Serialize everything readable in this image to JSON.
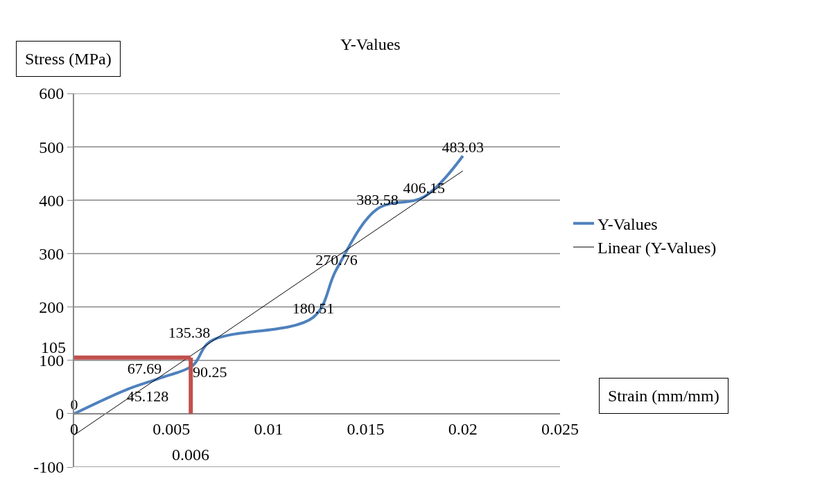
{
  "chart_data": {
    "type": "line",
    "title": "Y-Values",
    "xlabel": "Strain (mm/mm)",
    "ylabel": "Stress (MPa)",
    "series": [
      {
        "name": "Y-Values",
        "color": "#4f81bd",
        "x": [
          0,
          0.0027,
          0.0045,
          0.0061,
          0.007,
          0.0123,
          0.0135,
          0.0156,
          0.018,
          0.02
        ],
        "values": [
          0,
          45.128,
          67.69,
          90.25,
          135.38,
          180.51,
          270.76,
          383.58,
          406.15,
          483.03
        ],
        "value_labels": [
          "0",
          "45.128",
          "67.69",
          "90.25",
          "135.38",
          "180.51",
          "270.76",
          "383.58",
          "406.15",
          "483.03"
        ]
      },
      {
        "name": "Linear (Y-Values)",
        "color": "#000000",
        "x": [
          0,
          0.02
        ],
        "values": [
          -40,
          455
        ]
      }
    ],
    "ref_lines": [
      {
        "axis": "y",
        "value": 105,
        "label": "105",
        "color": "#c0504d"
      },
      {
        "axis": "x",
        "value": 0.006,
        "label": "0.006",
        "color": "#c0504d"
      }
    ],
    "xlim": [
      0,
      0.025
    ],
    "xticks": [
      0,
      0.005,
      0.01,
      0.015,
      0.02,
      0.025
    ],
    "ylim": [
      -100,
      600
    ],
    "yticks": [
      -100,
      0,
      100,
      200,
      300,
      400,
      500,
      600
    ],
    "grid": "y",
    "legend": "right",
    "marker": "none",
    "line_style": "solid"
  }
}
